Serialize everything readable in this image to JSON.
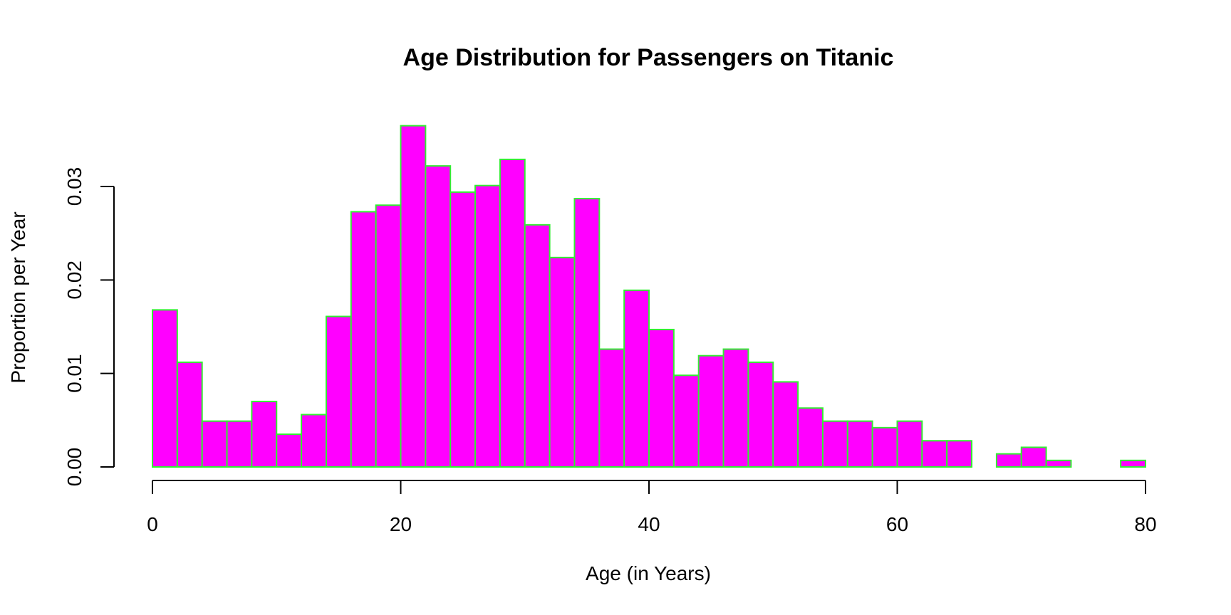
{
  "chart_data": {
    "type": "bar",
    "title": "Age Distribution for Passengers on Titanic",
    "xlabel": "Age (in Years)",
    "ylabel": "Proportion per Year",
    "xlim": [
      0,
      80
    ],
    "ylim": [
      0,
      0.037
    ],
    "bin_width": 2,
    "x_ticks": [
      0,
      20,
      40,
      60,
      80
    ],
    "x_tick_labels": [
      "0",
      "20",
      "40",
      "60",
      "80"
    ],
    "y_ticks": [
      0,
      0.01,
      0.02,
      0.03
    ],
    "y_tick_labels": [
      "0.00",
      "0.01",
      "0.02",
      "0.03"
    ],
    "grid": false,
    "bins": [
      {
        "start": 0,
        "end": 2,
        "value": 0.0168
      },
      {
        "start": 2,
        "end": 4,
        "value": 0.0112
      },
      {
        "start": 4,
        "end": 6,
        "value": 0.0049
      },
      {
        "start": 6,
        "end": 8,
        "value": 0.0049
      },
      {
        "start": 8,
        "end": 10,
        "value": 0.007
      },
      {
        "start": 10,
        "end": 12,
        "value": 0.0035
      },
      {
        "start": 12,
        "end": 14,
        "value": 0.0056
      },
      {
        "start": 14,
        "end": 16,
        "value": 0.0161
      },
      {
        "start": 16,
        "end": 18,
        "value": 0.0273
      },
      {
        "start": 18,
        "end": 20,
        "value": 0.028
      },
      {
        "start": 20,
        "end": 22,
        "value": 0.0365
      },
      {
        "start": 22,
        "end": 24,
        "value": 0.0322
      },
      {
        "start": 24,
        "end": 26,
        "value": 0.0294
      },
      {
        "start": 26,
        "end": 28,
        "value": 0.0301
      },
      {
        "start": 28,
        "end": 30,
        "value": 0.0329
      },
      {
        "start": 30,
        "end": 32,
        "value": 0.0259
      },
      {
        "start": 32,
        "end": 34,
        "value": 0.0224
      },
      {
        "start": 34,
        "end": 36,
        "value": 0.0287
      },
      {
        "start": 36,
        "end": 38,
        "value": 0.0126
      },
      {
        "start": 38,
        "end": 40,
        "value": 0.0189
      },
      {
        "start": 40,
        "end": 42,
        "value": 0.0147
      },
      {
        "start": 42,
        "end": 44,
        "value": 0.0098
      },
      {
        "start": 44,
        "end": 46,
        "value": 0.0119
      },
      {
        "start": 46,
        "end": 48,
        "value": 0.0126
      },
      {
        "start": 48,
        "end": 50,
        "value": 0.0112
      },
      {
        "start": 50,
        "end": 52,
        "value": 0.0091
      },
      {
        "start": 52,
        "end": 54,
        "value": 0.0063
      },
      {
        "start": 54,
        "end": 56,
        "value": 0.0049
      },
      {
        "start": 56,
        "end": 58,
        "value": 0.0049
      },
      {
        "start": 58,
        "end": 60,
        "value": 0.0042
      },
      {
        "start": 60,
        "end": 62,
        "value": 0.0049
      },
      {
        "start": 62,
        "end": 64,
        "value": 0.0028
      },
      {
        "start": 64,
        "end": 66,
        "value": 0.0028
      },
      {
        "start": 66,
        "end": 68,
        "value": 0.0
      },
      {
        "start": 68,
        "end": 70,
        "value": 0.0014
      },
      {
        "start": 70,
        "end": 72,
        "value": 0.0021
      },
      {
        "start": 72,
        "end": 74,
        "value": 0.0007
      },
      {
        "start": 74,
        "end": 76,
        "value": 0.0
      },
      {
        "start": 76,
        "end": 78,
        "value": 0.0
      },
      {
        "start": 78,
        "end": 80,
        "value": 0.0007
      }
    ],
    "colors": {
      "bar_fill": "#ff00ff",
      "bar_border": "#33ee33"
    }
  }
}
